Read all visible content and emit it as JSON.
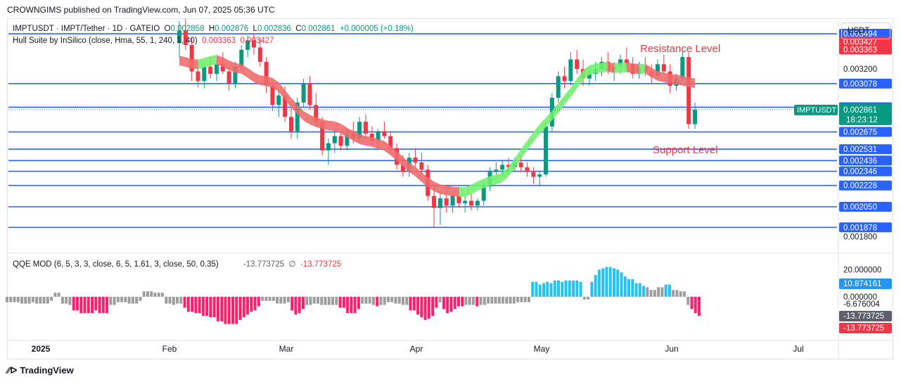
{
  "header": {
    "published_by": "CROWNGIMS published on TradingView.com, Jun 07, 2025 05:36 UTC"
  },
  "legend": {
    "symbol": "IMPTUSDT · IMPT/Tether · 1D · GATEIO",
    "open_label": "O",
    "open": "0.002858",
    "high_label": "H",
    "high": "0.002876",
    "low_label": "L",
    "low": "0.002836",
    "close_label": "C",
    "close": "0.002861",
    "change": "+0.000005 (+0.18%)",
    "indicator": "Hull Suite by InSilico (close, Hma, 55, 1, 240, 1, 40)",
    "hull_value_1": "0.003363",
    "hull_value_2": "0.003427",
    "qqe": "QQE MOD (6, 5, 3, 3, close, 6, 5, 1.61, 3, close, 50, 0.35)",
    "qqe_value_1": "-13.773725",
    "qqe_symbol": "∅",
    "qqe_value_2": "-13.773725"
  },
  "currency": "USDT",
  "footer": {
    "brand": "TradingView"
  },
  "colors": {
    "up": "#089981",
    "down": "#f23645",
    "level_line": "#2962ff",
    "hull_green": "#72f06f",
    "hull_red": "#f06b6b",
    "qqe_blue": "#21c4f3",
    "qqe_pink": "#ff1f6a",
    "qqe_gray": "#9e9e9e"
  },
  "chart_data": [
    {
      "type": "candlestick",
      "x_axis_labels": [
        "2025",
        "Feb",
        "Mar",
        "Apr",
        "May",
        "Jun",
        "Jul"
      ],
      "ylim": [
        0.00178,
        0.0036
      ],
      "y_tick_labels": [
        "0.003200",
        "0.001800"
      ],
      "annotations": [
        {
          "text": "Resistance Level",
          "color": "#f23645",
          "near": "top-right"
        },
        {
          "text": "Support Level",
          "color": "#f23645",
          "near": "right"
        }
      ],
      "horizontal_levels": [
        {
          "value": 0.003494,
          "label": "0.003494"
        },
        {
          "value": 0.003078,
          "label": "0.003078"
        },
        {
          "value": 0.002881,
          "label": "0.002881"
        },
        {
          "value": 0.002675,
          "label": "0.002675"
        },
        {
          "value": 0.002531,
          "label": "0.002531"
        },
        {
          "value": 0.002436,
          "label": "0.002436"
        },
        {
          "value": 0.002346,
          "label": "0.002346"
        },
        {
          "value": 0.002228,
          "label": "0.002228"
        },
        {
          "value": 0.00205,
          "label": "0.002050"
        },
        {
          "value": 0.001878,
          "label": "0.001878"
        }
      ],
      "price_tags": [
        {
          "value": 0.003427,
          "label": "0.003427",
          "color": "#f23645"
        },
        {
          "value": 0.003363,
          "label": "0.003363",
          "color": "#f23645"
        }
      ],
      "last_price": {
        "symbol": "IMPTUSDT",
        "value": 0.002861,
        "label": "0.002861",
        "countdown": "18:23:12",
        "color": "#089981"
      },
      "candles_ohlc": [
        [
          0.00342,
          0.0036,
          0.0033,
          0.00352
        ],
        [
          0.00352,
          0.00362,
          0.00336,
          0.0034
        ],
        [
          0.0034,
          0.00346,
          0.0031,
          0.00318
        ],
        [
          0.00318,
          0.00326,
          0.00305,
          0.0031
        ],
        [
          0.0031,
          0.00325,
          0.00304,
          0.00322
        ],
        [
          0.00322,
          0.0033,
          0.00312,
          0.00316
        ],
        [
          0.00316,
          0.00328,
          0.0031,
          0.00324
        ],
        [
          0.00324,
          0.00334,
          0.00316,
          0.00318
        ],
        [
          0.00318,
          0.00322,
          0.00302,
          0.00308
        ],
        [
          0.00308,
          0.00326,
          0.00304,
          0.00322
        ],
        [
          0.00322,
          0.0034,
          0.00318,
          0.00336
        ],
        [
          0.00336,
          0.00348,
          0.0033,
          0.00344
        ],
        [
          0.00344,
          0.0035,
          0.00332,
          0.00338
        ],
        [
          0.00338,
          0.00346,
          0.00322,
          0.00326
        ],
        [
          0.00326,
          0.0033,
          0.003,
          0.00306
        ],
        [
          0.00306,
          0.0031,
          0.00285,
          0.0029
        ],
        [
          0.0029,
          0.00302,
          0.0028,
          0.00298
        ],
        [
          0.00298,
          0.00306,
          0.00276,
          0.0028
        ],
        [
          0.0028,
          0.00288,
          0.00262,
          0.00268
        ],
        [
          0.00268,
          0.00296,
          0.00262,
          0.00292
        ],
        [
          0.00292,
          0.00312,
          0.00288,
          0.00308
        ],
        [
          0.00308,
          0.00314,
          0.00286,
          0.0029
        ],
        [
          0.0029,
          0.003,
          0.00272,
          0.00276
        ],
        [
          0.00276,
          0.0028,
          0.00248,
          0.00252
        ],
        [
          0.00252,
          0.00262,
          0.0024,
          0.00258
        ],
        [
          0.00258,
          0.0027,
          0.0025,
          0.00264
        ],
        [
          0.00264,
          0.00268,
          0.00252,
          0.00256
        ],
        [
          0.00256,
          0.0027,
          0.00252,
          0.00266
        ],
        [
          0.00266,
          0.00276,
          0.00258,
          0.00262
        ],
        [
          0.00262,
          0.0028,
          0.00258,
          0.00276
        ],
        [
          0.00276,
          0.00282,
          0.00262,
          0.00266
        ],
        [
          0.00266,
          0.00272,
          0.00256,
          0.0026
        ],
        [
          0.0026,
          0.0027,
          0.00254,
          0.00268
        ],
        [
          0.00268,
          0.00276,
          0.00262,
          0.00264
        ],
        [
          0.00264,
          0.00268,
          0.0025,
          0.00254
        ],
        [
          0.00254,
          0.00258,
          0.00236,
          0.0024
        ],
        [
          0.0024,
          0.00248,
          0.0023,
          0.00234
        ],
        [
          0.00234,
          0.0025,
          0.0023,
          0.00246
        ],
        [
          0.00246,
          0.00254,
          0.00238,
          0.00242
        ],
        [
          0.00242,
          0.0025,
          0.00232,
          0.00236
        ],
        [
          0.00236,
          0.0024,
          0.0021,
          0.00214
        ],
        [
          0.00214,
          0.00224,
          0.00188,
          0.00204
        ],
        [
          0.00204,
          0.00218,
          0.0019,
          0.00212
        ],
        [
          0.00212,
          0.00222,
          0.002,
          0.00206
        ],
        [
          0.00206,
          0.00218,
          0.002,
          0.00214
        ],
        [
          0.00214,
          0.00222,
          0.00204,
          0.00208
        ],
        [
          0.00208,
          0.00214,
          0.002,
          0.0021
        ],
        [
          0.0021,
          0.00216,
          0.00202,
          0.00206
        ],
        [
          0.00206,
          0.00212,
          0.00202,
          0.0021
        ],
        [
          0.0021,
          0.00226,
          0.00206,
          0.00222
        ],
        [
          0.00222,
          0.00238,
          0.00218,
          0.00234
        ],
        [
          0.00234,
          0.00242,
          0.00228,
          0.00236
        ],
        [
          0.00236,
          0.00244,
          0.0023,
          0.0024
        ],
        [
          0.0024,
          0.00246,
          0.00232,
          0.00238
        ],
        [
          0.00238,
          0.00246,
          0.00234,
          0.00242
        ],
        [
          0.00242,
          0.00248,
          0.00234,
          0.00238
        ],
        [
          0.00238,
          0.00242,
          0.0023,
          0.00234
        ],
        [
          0.00234,
          0.00238,
          0.00224,
          0.0023
        ],
        [
          0.0023,
          0.00234,
          0.00222,
          0.00232
        ],
        [
          0.00232,
          0.00276,
          0.0023,
          0.00272
        ],
        [
          0.00272,
          0.003,
          0.00268,
          0.00296
        ],
        [
          0.00296,
          0.00318,
          0.00292,
          0.00314
        ],
        [
          0.00314,
          0.00322,
          0.00304,
          0.0031
        ],
        [
          0.0031,
          0.00334,
          0.00306,
          0.00328
        ],
        [
          0.00328,
          0.00336,
          0.00316,
          0.0032
        ],
        [
          0.0032,
          0.00328,
          0.00306,
          0.00312
        ],
        [
          0.00312,
          0.0032,
          0.00306,
          0.00316
        ],
        [
          0.00316,
          0.00326,
          0.0031,
          0.0032
        ],
        [
          0.0032,
          0.0033,
          0.00314,
          0.00326
        ],
        [
          0.00326,
          0.00334,
          0.00316,
          0.00318
        ],
        [
          0.00318,
          0.00326,
          0.0031,
          0.00322
        ],
        [
          0.00322,
          0.00332,
          0.00316,
          0.00328
        ],
        [
          0.00328,
          0.00338,
          0.0032,
          0.00324
        ],
        [
          0.00324,
          0.0033,
          0.00312,
          0.00316
        ],
        [
          0.00316,
          0.00326,
          0.00312,
          0.00322
        ],
        [
          0.00322,
          0.0033,
          0.00314,
          0.00318
        ],
        [
          0.00318,
          0.00324,
          0.00308,
          0.00314
        ],
        [
          0.00314,
          0.00328,
          0.00312,
          0.00324
        ],
        [
          0.00324,
          0.00332,
          0.00316,
          0.00318
        ],
        [
          0.00318,
          0.00324,
          0.003,
          0.00306
        ],
        [
          0.00306,
          0.00316,
          0.00302,
          0.00312
        ],
        [
          0.00312,
          0.00336,
          0.0031,
          0.0033
        ],
        [
          0.0033,
          0.00334,
          0.0027,
          0.00274
        ],
        [
          0.00274,
          0.00292,
          0.0027,
          0.00286
        ]
      ],
      "hull_band_trend": "down (red) from Jan to late Apr, up (green) to late May, turning down (red) in Jun"
    },
    {
      "type": "bar",
      "name": "QQE MOD",
      "ylim": [
        -30,
        30
      ],
      "y_tick_labels": [
        "20.000000",
        "0.000000"
      ],
      "price_tags": [
        {
          "value": 10.874161,
          "label": "10.874161",
          "color": "#2196f3"
        },
        {
          "value": -6.676004,
          "label": "-6.676004",
          "color": "transparent"
        },
        {
          "value": -13.773725,
          "label": "-13.773725",
          "color": "#5d606b"
        },
        {
          "value": -13.773725,
          "label": "-13.773725",
          "color": "#f23645"
        }
      ],
      "values": [
        -4,
        -4,
        -4,
        -4,
        -5,
        -5,
        -5,
        -4,
        -5,
        -5,
        -5,
        -5,
        -3,
        3,
        3,
        -5,
        -5,
        -6,
        -10,
        -10,
        -12,
        -12,
        -12,
        -12,
        -10,
        -12,
        -12,
        -12,
        -6,
        -6,
        -4,
        -4,
        -4,
        -5,
        -5,
        -5,
        -3,
        4,
        4,
        4,
        3,
        3,
        3,
        -5,
        -5,
        -6,
        -5,
        -5,
        -8,
        -11,
        -11,
        -12,
        -12,
        -14,
        -14,
        -15,
        -15,
        -18,
        -18,
        -20,
        -20,
        -20,
        -20,
        -17,
        -15,
        -13,
        -11,
        -10,
        -7,
        -3,
        -3,
        -3,
        -3,
        -5,
        -5,
        -5,
        -4,
        -10,
        -13,
        -12,
        -9,
        -6,
        -6,
        -5,
        -5,
        -6,
        -6,
        -6,
        -6,
        -6,
        -8,
        -8,
        -12,
        -12,
        -12,
        -9,
        -5,
        -5,
        -5,
        -6,
        -7,
        -6,
        -6,
        -4,
        -4,
        -5,
        -5,
        -6,
        -6,
        -10,
        -10,
        -13,
        -15,
        -17,
        -16,
        -14,
        -8,
        -4,
        -9,
        -12,
        -11,
        -9,
        -7,
        -7,
        -6,
        -6,
        -6,
        -7,
        -6,
        -6,
        -5,
        -5,
        -5,
        -5,
        -5,
        -5,
        -5,
        -5,
        -4,
        -4,
        -4,
        -4,
        11,
        11,
        9,
        10,
        11,
        10,
        12,
        12,
        11,
        12,
        12,
        12,
        12,
        11,
        -2,
        -2,
        11,
        16,
        20,
        21,
        22,
        22,
        21,
        20,
        18,
        15,
        13,
        13,
        10,
        10,
        8,
        7,
        5,
        5,
        7,
        7,
        9,
        9,
        5,
        5,
        4,
        4,
        -6,
        -9,
        -12,
        -14
      ]
    }
  ]
}
